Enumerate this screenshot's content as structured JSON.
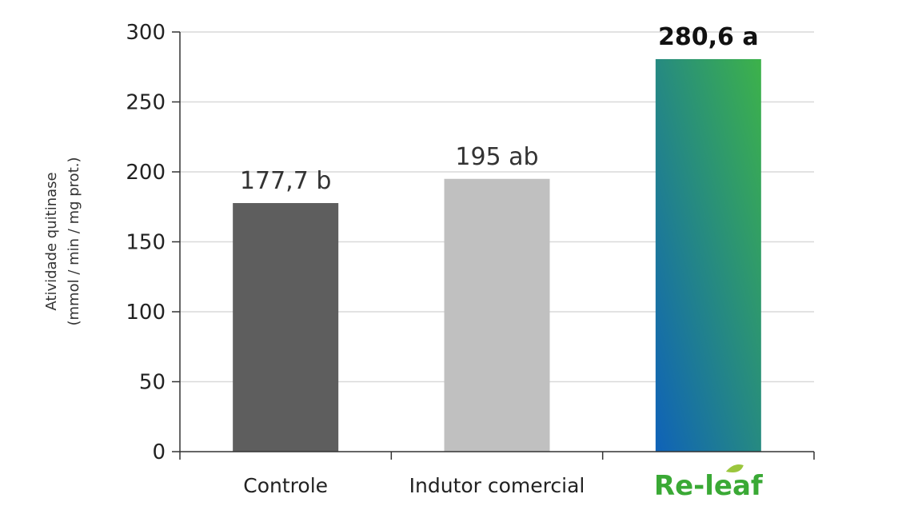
{
  "chart_data": {
    "type": "bar",
    "title": "",
    "xlabel": "",
    "ylabel_line1": "Atividade quitinase",
    "ylabel_line2": "(mmol / min / mg prot.)",
    "ylim": [
      0,
      300
    ],
    "yticks": [
      0,
      50,
      100,
      150,
      200,
      250,
      300
    ],
    "categories": [
      "Controle",
      "Indutor comercial",
      "Re-leaf"
    ],
    "values": [
      177.7,
      195,
      280.6
    ],
    "data_labels": [
      "177,7 b",
      "195 ab",
      "280,6 a"
    ],
    "bar_colors": [
      "#5e5e5e",
      "#c0c0c0",
      "gradient"
    ],
    "gradient_colors": [
      "#0f62b8",
      "#3db24a"
    ],
    "grid": true,
    "legend": "none"
  },
  "logo": {
    "text": "Re-leaf",
    "colors": {
      "re": "#3aa935",
      "leaf": "#9bc63d"
    },
    "icon": "leaf-icon"
  }
}
